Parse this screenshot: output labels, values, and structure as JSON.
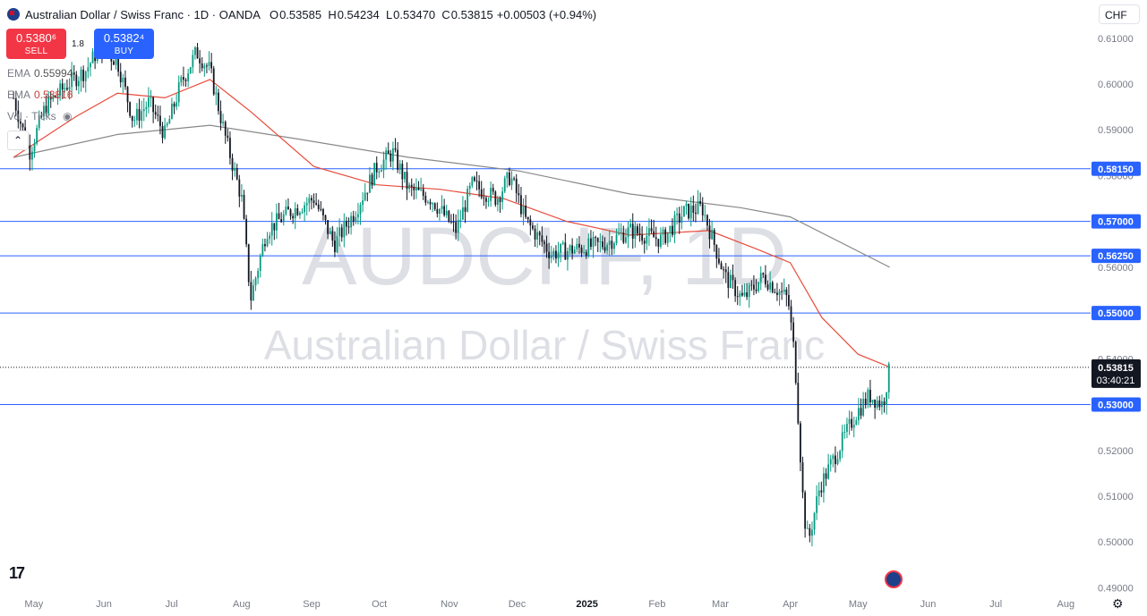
{
  "header": {
    "symbol_title": "Australian Dollar / Swiss Franc · 1D · OANDA",
    "open_label": "O",
    "open": "0.53585",
    "high_label": "H",
    "high": "0.54234",
    "low_label": "L",
    "low": "0.53470",
    "close_label": "C",
    "close": "0.53815",
    "change": "+0.00503 (+0.94%)"
  },
  "trade": {
    "sell_price": "0.5380⁶",
    "sell_label": "SELL",
    "spread": "1.8",
    "buy_price": "0.5382⁴",
    "buy_label": "BUY"
  },
  "indicators": {
    "ema1_label": "EMA",
    "ema1_value": "0.55994",
    "ema2_label": "EMA",
    "ema2_value": "0.53816",
    "vol_label": "Vol · Ticks"
  },
  "currency_button": "CHF",
  "collapse_icon": "chevron-up-icon",
  "settings_icon": "gear-icon",
  "colors": {
    "up": "#089981",
    "down": "#131722",
    "ema_fast": "#e74c3c",
    "ema_slow": "#888888",
    "hline": "#2962ff",
    "label_bg": "#2962ff",
    "price_bg": "#131722"
  },
  "chart_data": {
    "type": "candlestick",
    "watermark_symbol": "AUDCHF, 1D",
    "watermark_name": "Australian Dollar / Swiss Franc",
    "x_ticks": [
      "May",
      "Jun",
      "Jul",
      "Aug",
      "Sep",
      "Oct",
      "Nov",
      "Dec",
      "2025",
      "Feb",
      "Mar",
      "Apr",
      "May",
      "Jun",
      "Jul",
      "Aug"
    ],
    "y_ticks": [
      0.61,
      0.6,
      0.59,
      0.58,
      0.57,
      0.56,
      0.55,
      0.54,
      0.53,
      0.52,
      0.51,
      0.5,
      0.49
    ],
    "y_tick_labels": [
      "0.61000",
      "0.60000",
      "0.59000",
      "0.58000",
      "0.57000",
      "0.56000",
      "0.55000",
      "0.54000",
      "0.53000",
      "0.52000",
      "0.51000",
      "0.50000",
      "0.49000"
    ],
    "ylim": [
      0.4895,
      0.6125
    ],
    "horizontal_levels": [
      {
        "value": 0.5815,
        "label": "0.58150"
      },
      {
        "value": 0.57,
        "label": "0.57000"
      },
      {
        "value": 0.5625,
        "label": "0.56250"
      },
      {
        "value": 0.55,
        "label": "0.55000"
      },
      {
        "value": 0.53,
        "label": "0.53000"
      }
    ],
    "last_price": {
      "value": 0.53815,
      "label": "0.53815",
      "countdown": "03:40:21"
    },
    "price_path": [
      {
        "t": "2024-04-22",
        "v": 0.597
      },
      {
        "t": "2024-04-29",
        "v": 0.585
      },
      {
        "t": "2024-05-06",
        "v": 0.595
      },
      {
        "t": "2024-05-16",
        "v": 0.6
      },
      {
        "t": "2024-05-24",
        "v": 0.603
      },
      {
        "t": "2024-05-30",
        "v": 0.608
      },
      {
        "t": "2024-06-07",
        "v": 0.605
      },
      {
        "t": "2024-06-14",
        "v": 0.592
      },
      {
        "t": "2024-06-21",
        "v": 0.596
      },
      {
        "t": "2024-06-28",
        "v": 0.589
      },
      {
        "t": "2024-07-05",
        "v": 0.6
      },
      {
        "t": "2024-07-12",
        "v": 0.607
      },
      {
        "t": "2024-07-18",
        "v": 0.603
      },
      {
        "t": "2024-07-25",
        "v": 0.588
      },
      {
        "t": "2024-08-01",
        "v": 0.575
      },
      {
        "t": "2024-08-05",
        "v": 0.553
      },
      {
        "t": "2024-08-12",
        "v": 0.568
      },
      {
        "t": "2024-08-22",
        "v": 0.572
      },
      {
        "t": "2024-09-02",
        "v": 0.575
      },
      {
        "t": "2024-09-11",
        "v": 0.565
      },
      {
        "t": "2024-09-20",
        "v": 0.572
      },
      {
        "t": "2024-09-30",
        "v": 0.582
      },
      {
        "t": "2024-10-07",
        "v": 0.585
      },
      {
        "t": "2024-10-14",
        "v": 0.577
      },
      {
        "t": "2024-10-24",
        "v": 0.575
      },
      {
        "t": "2024-11-04",
        "v": 0.568
      },
      {
        "t": "2024-11-11",
        "v": 0.578
      },
      {
        "t": "2024-11-22",
        "v": 0.575
      },
      {
        "t": "2024-11-28",
        "v": 0.58
      },
      {
        "t": "2024-12-05",
        "v": 0.57
      },
      {
        "t": "2024-12-16",
        "v": 0.563
      },
      {
        "t": "2024-12-27",
        "v": 0.564
      },
      {
        "t": "2025-01-08",
        "v": 0.565
      },
      {
        "t": "2025-01-20",
        "v": 0.568
      },
      {
        "t": "2025-02-03",
        "v": 0.566
      },
      {
        "t": "2025-02-13",
        "v": 0.572
      },
      {
        "t": "2025-02-21",
        "v": 0.573
      },
      {
        "t": "2025-03-03",
        "v": 0.558
      },
      {
        "t": "2025-03-11",
        "v": 0.553
      },
      {
        "t": "2025-03-20",
        "v": 0.558
      },
      {
        "t": "2025-03-31",
        "v": 0.553
      },
      {
        "t": "2025-04-03",
        "v": 0.54
      },
      {
        "t": "2025-04-07",
        "v": 0.506
      },
      {
        "t": "2025-04-09",
        "v": 0.5
      },
      {
        "t": "2025-04-14",
        "v": 0.512
      },
      {
        "t": "2025-04-22",
        "v": 0.52
      },
      {
        "t": "2025-04-30",
        "v": 0.528
      },
      {
        "t": "2025-05-06",
        "v": 0.532
      },
      {
        "t": "2025-05-12",
        "v": 0.53
      },
      {
        "t": "2025-05-15",
        "v": 0.538
      }
    ],
    "ema_fast": [
      {
        "t": "2024-04-22",
        "v": 0.584
      },
      {
        "t": "2024-05-20",
        "v": 0.593
      },
      {
        "t": "2024-06-07",
        "v": 0.598
      },
      {
        "t": "2024-06-28",
        "v": 0.597
      },
      {
        "t": "2024-07-18",
        "v": 0.601
      },
      {
        "t": "2024-08-05",
        "v": 0.594
      },
      {
        "t": "2024-09-02",
        "v": 0.582
      },
      {
        "t": "2024-09-30",
        "v": 0.578
      },
      {
        "t": "2024-10-28",
        "v": 0.577
      },
      {
        "t": "2024-11-25",
        "v": 0.575
      },
      {
        "t": "2024-12-23",
        "v": 0.57
      },
      {
        "t": "2025-01-20",
        "v": 0.567
      },
      {
        "t": "2025-02-24",
        "v": 0.568
      },
      {
        "t": "2025-03-17",
        "v": 0.564
      },
      {
        "t": "2025-04-01",
        "v": 0.561
      },
      {
        "t": "2025-04-15",
        "v": 0.549
      },
      {
        "t": "2025-05-01",
        "v": 0.541
      },
      {
        "t": "2025-05-15",
        "v": 0.5382
      }
    ],
    "ema_slow": [
      {
        "t": "2024-04-22",
        "v": 0.584
      },
      {
        "t": "2024-06-07",
        "v": 0.589
      },
      {
        "t": "2024-07-18",
        "v": 0.591
      },
      {
        "t": "2024-08-26",
        "v": 0.588
      },
      {
        "t": "2024-10-14",
        "v": 0.584
      },
      {
        "t": "2024-12-02",
        "v": 0.581
      },
      {
        "t": "2025-01-20",
        "v": 0.576
      },
      {
        "t": "2025-03-10",
        "v": 0.573
      },
      {
        "t": "2025-04-01",
        "v": 0.571
      },
      {
        "t": "2025-05-15",
        "v": 0.56
      }
    ]
  }
}
